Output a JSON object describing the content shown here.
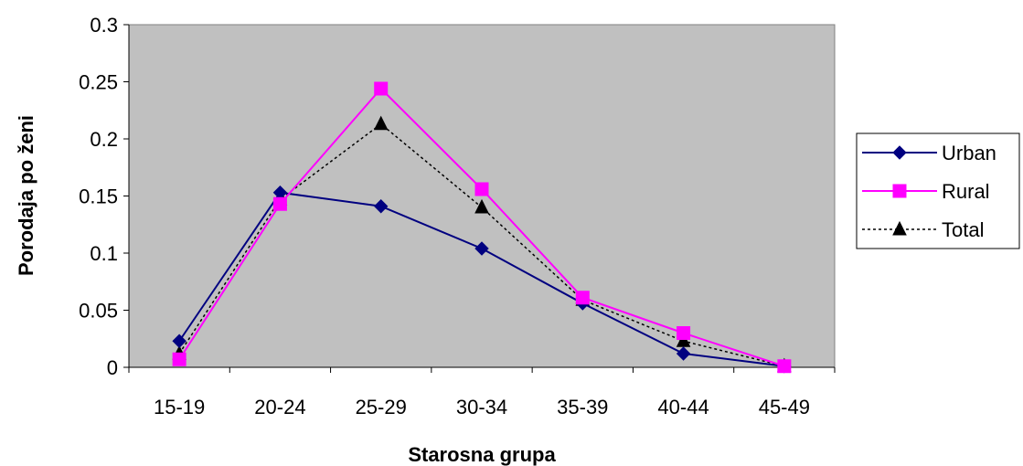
{
  "chart_data": {
    "type": "line",
    "title": "",
    "xlabel": "Starosna grupa",
    "ylabel": "Porodaja po ženi",
    "categories": [
      "15-19",
      "20-24",
      "25-29",
      "30-34",
      "35-39",
      "40-44",
      "45-49"
    ],
    "ylim": [
      0,
      0.3
    ],
    "yticks": [
      "0",
      "0.05",
      "0.1",
      "0.15",
      "0.2",
      "0.25",
      "0.3"
    ],
    "grid": false,
    "legend_position": "right",
    "plot_background": "#c0c0c0",
    "series": [
      {
        "name": "Urban",
        "values": [
          0.023,
          0.153,
          0.141,
          0.104,
          0.056,
          0.012,
          0.001
        ],
        "color": "#000080",
        "marker": "diamond",
        "line_style": "solid"
      },
      {
        "name": "Rural",
        "values": [
          0.007,
          0.143,
          0.244,
          0.156,
          0.061,
          0.03,
          0.001
        ],
        "color": "#ff00ff",
        "marker": "square",
        "line_style": "solid"
      },
      {
        "name": "Total",
        "values": [
          0.012,
          0.147,
          0.213,
          0.14,
          0.059,
          0.023,
          0.001
        ],
        "color": "#000000",
        "marker": "triangle",
        "line_style": "dotted"
      }
    ]
  }
}
